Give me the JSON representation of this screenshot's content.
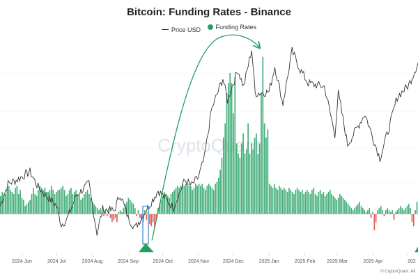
{
  "chart_data": {
    "type": "bar",
    "title": "Bitcoin: Funding Rates - Binance",
    "watermark": "CryptoQuant",
    "credit": "© CryptoQuant. All",
    "legend": [
      {
        "name": "Price USD",
        "kind": "line",
        "color": "#333333"
      },
      {
        "name": "Funding Rates",
        "kind": "dot",
        "color": "#22a063"
      }
    ],
    "xticks": [
      "2024 Jun",
      "2024 Jul",
      "2024 Aug",
      "2024 Sep",
      "2024 Oct",
      "2024 Nov",
      "2024 Dec",
      "2025 Jan",
      "2025 Feb",
      "2025 Mar",
      "2025 Apr",
      "202"
    ],
    "xtick_dates": [
      "2024-06-01",
      "2024-07-01",
      "2024-08-01",
      "2024-09-01",
      "2024-10-01",
      "2024-11-01",
      "2024-12-01",
      "2025-01-01",
      "2025-02-01",
      "2025-03-01",
      "2025-04-01",
      "2025-05-01"
    ],
    "x_range": [
      "2024-05-13",
      "2025-05-10"
    ],
    "grid": true,
    "series": [
      {
        "name": "Price USD",
        "type": "line",
        "color": "#333333",
        "points": [
          [
            "2024-05-13",
            61000
          ],
          [
            "2024-05-20",
            67500
          ],
          [
            "2024-05-27",
            68500
          ],
          [
            "2024-06-03",
            70000
          ],
          [
            "2024-06-08",
            71000
          ],
          [
            "2024-06-15",
            66500
          ],
          [
            "2024-06-22",
            64000
          ],
          [
            "2024-07-01",
            61000
          ],
          [
            "2024-07-05",
            55500
          ],
          [
            "2024-07-10",
            57000
          ],
          [
            "2024-07-18",
            64000
          ],
          [
            "2024-07-29",
            67500
          ],
          [
            "2024-08-05",
            53000
          ],
          [
            "2024-08-10",
            60000
          ],
          [
            "2024-08-20",
            59500
          ],
          [
            "2024-08-25",
            64500
          ],
          [
            "2024-09-01",
            57500
          ],
          [
            "2024-09-07",
            54500
          ],
          [
            "2024-09-18",
            60500
          ],
          [
            "2024-09-27",
            65500
          ],
          [
            "2024-10-10",
            60500
          ],
          [
            "2024-10-20",
            68500
          ],
          [
            "2024-10-26",
            67000
          ],
          [
            "2024-11-01",
            69500
          ],
          [
            "2024-11-06",
            75000
          ],
          [
            "2024-11-12",
            89000
          ],
          [
            "2024-11-22",
            98500
          ],
          [
            "2024-11-26",
            92000
          ],
          [
            "2024-12-05",
            101000
          ],
          [
            "2024-12-10",
            96000
          ],
          [
            "2024-12-17",
            107000
          ],
          [
            "2024-12-20",
            94000
          ],
          [
            "2025-01-01",
            94500
          ],
          [
            "2025-01-06",
            102000
          ],
          [
            "2025-01-13",
            91000
          ],
          [
            "2025-01-21",
            106500
          ],
          [
            "2025-01-28",
            101000
          ],
          [
            "2025-02-04",
            97000
          ],
          [
            "2025-02-18",
            96000
          ],
          [
            "2025-02-27",
            82000
          ],
          [
            "2025-03-02",
            94000
          ],
          [
            "2025-03-10",
            79000
          ],
          [
            "2025-03-25",
            88000
          ],
          [
            "2025-03-31",
            82000
          ],
          [
            "2025-04-07",
            75000
          ],
          [
            "2025-04-15",
            84000
          ],
          [
            "2025-04-22",
            93000
          ],
          [
            "2025-05-02",
            96500
          ],
          [
            "2025-05-10",
            103000
          ]
        ]
      },
      {
        "name": "Funding Rates",
        "type": "bar",
        "color_positive": "#22a063",
        "color_negative": "#e0413c",
        "values": [
          0.009,
          0.011,
          0.01,
          0.01,
          0.013,
          0.014,
          0.012,
          0.011,
          0.01,
          0.013,
          0.014,
          0.01,
          0.012,
          0.008,
          0.007,
          0.004,
          0.005,
          0.006,
          0.007,
          0.01,
          0.013,
          0.01,
          0.009,
          0.012,
          0.014,
          0.013,
          0.012,
          0.013,
          0.011,
          0.011,
          0.012,
          0.014,
          0.012,
          0.01,
          0.011,
          0.012,
          0.012,
          0.013,
          0.014,
          0.012,
          0.009,
          0.01,
          0.012,
          0.013,
          0.01,
          0.011,
          0.012,
          0.01,
          0.009,
          0.007,
          0.008,
          0.01,
          0.011,
          0.012,
          0.01,
          0.008,
          0.006,
          0.005,
          0.004,
          0.003,
          0.002,
          0.003,
          0.001,
          -0.001,
          0.002,
          -0.001,
          0.003,
          -0.002,
          -0.004,
          -0.003,
          -0.002,
          -0.004,
          0.001,
          0.002,
          0.001,
          0.003,
          0.005,
          0.006,
          0.008,
          0.007,
          0.006,
          0.005,
          0.003,
          -0.001,
          0.002,
          -0.002,
          -0.003,
          -0.004,
          0.002,
          -0.003,
          0.001,
          -0.005,
          -0.006,
          -0.004,
          -0.007,
          -0.003,
          0.003,
          0.005,
          0.007,
          0.009,
          0.011,
          0.01,
          0.009,
          0.008,
          0.01,
          0.011,
          0.012,
          0.013,
          0.014,
          0.013,
          0.014,
          0.015,
          0.014,
          0.015,
          0.014,
          0.015,
          0.014,
          0.012,
          0.013,
          0.015,
          0.014,
          0.015,
          0.014,
          0.015,
          0.013,
          0.012,
          0.014,
          0.015,
          0.014,
          0.013,
          0.012,
          0.015,
          0.016,
          0.018,
          0.022,
          0.028,
          0.038,
          0.045,
          0.06,
          0.065,
          0.07,
          0.065,
          0.05,
          0.068,
          0.035,
          0.03,
          0.028,
          0.035,
          0.04,
          0.03,
          0.032,
          0.045,
          0.03,
          0.035,
          0.032,
          0.038,
          0.04,
          0.03,
          0.035,
          0.06,
          0.078,
          0.045,
          0.038,
          0.042,
          0.015,
          0.014,
          0.013,
          0.015,
          0.013,
          0.012,
          0.014,
          0.013,
          0.012,
          0.013,
          0.012,
          0.011,
          0.013,
          0.012,
          0.011,
          0.01,
          0.012,
          0.013,
          0.012,
          0.011,
          0.012,
          0.01,
          0.011,
          0.012,
          0.011,
          0.01,
          0.012,
          0.013,
          0.01,
          0.009,
          0.011,
          0.012,
          0.01,
          0.011,
          0.009,
          0.01,
          0.011,
          0.012,
          0.01,
          0.009,
          0.008,
          0.007,
          0.008,
          0.01,
          0.009,
          0.008,
          0.007,
          0.006,
          0.005,
          0.004,
          0.003,
          0.002,
          0.003,
          0.004,
          0.005,
          0.006,
          0.004,
          0.003,
          0.002,
          0.001,
          0.002,
          0.003,
          -0.002,
          0.001,
          -0.008,
          -0.004,
          0.002,
          0.003,
          0.004,
          0.002,
          -0.001,
          0.002,
          0.003,
          0.002,
          0.001,
          0.002,
          -0.003,
          0.001,
          0.002,
          0.003,
          0.004,
          0.003,
          0.002,
          0.003,
          0.004,
          0.005,
          0.003,
          -0.004,
          -0.006,
          0.002,
          0.006
        ]
      }
    ]
  },
  "annotations": {
    "arrow_color": "#22a063",
    "highlight_box_color": "#3b82c4",
    "marker_colors": "#22a063"
  }
}
